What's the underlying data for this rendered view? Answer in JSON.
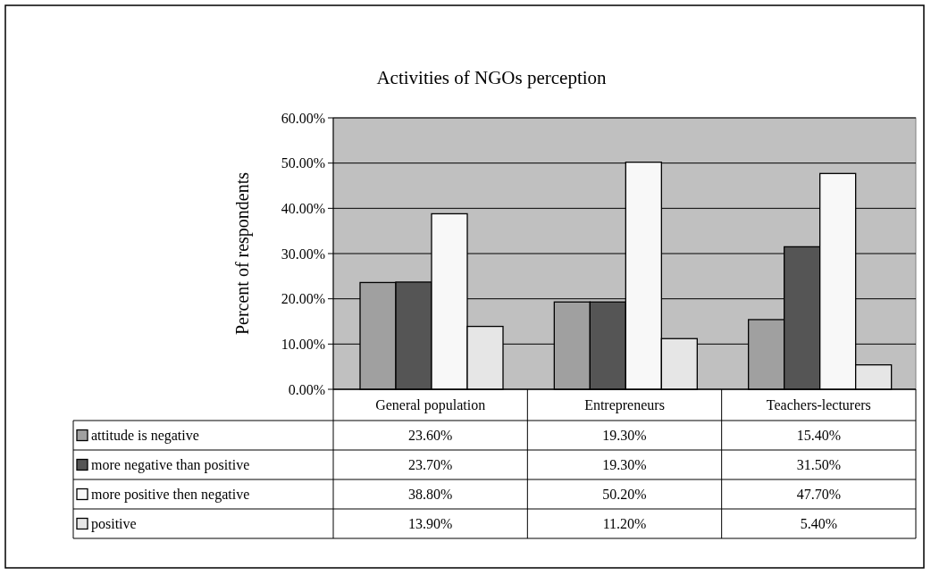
{
  "chart_data": {
    "type": "bar",
    "title": "Activities of NGOs perception",
    "ylabel": "Percent of respondents",
    "categories": [
      "General population",
      "Entrepreneurs",
      "Teachers-lecturers"
    ],
    "series": [
      {
        "name": "attitude is negative",
        "color": "#a0a0a0",
        "values": [
          23.6,
          19.3,
          15.4
        ],
        "value_labels": [
          "23.60%",
          "19.30%",
          "15.40%"
        ]
      },
      {
        "name": "more negative than positive",
        "color": "#555555",
        "values": [
          23.7,
          19.3,
          31.5
        ],
        "value_labels": [
          "23.70%",
          "19.30%",
          "31.50%"
        ]
      },
      {
        "name": "more positive then negative",
        "color": "#f8f8f8",
        "values": [
          38.8,
          50.2,
          47.7
        ],
        "value_labels": [
          "38.80%",
          "50.20%",
          "47.70%"
        ]
      },
      {
        "name": "positive",
        "color": "#e6e6e6",
        "values": [
          13.9,
          11.2,
          5.4
        ],
        "value_labels": [
          "13.90%",
          "11.20%",
          "5.40%"
        ]
      }
    ],
    "ylim": [
      0,
      60
    ],
    "yticks": [
      {
        "value": 0,
        "label": "0.00%"
      },
      {
        "value": 10,
        "label": "10.00%"
      },
      {
        "value": 20,
        "label": "20.00%"
      },
      {
        "value": 30,
        "label": "30.00%"
      },
      {
        "value": 40,
        "label": "40.00%"
      },
      {
        "value": 50,
        "label": "50.00%"
      },
      {
        "value": 60,
        "label": "60.00%"
      }
    ],
    "grid": "y",
    "legend": "bottom"
  }
}
